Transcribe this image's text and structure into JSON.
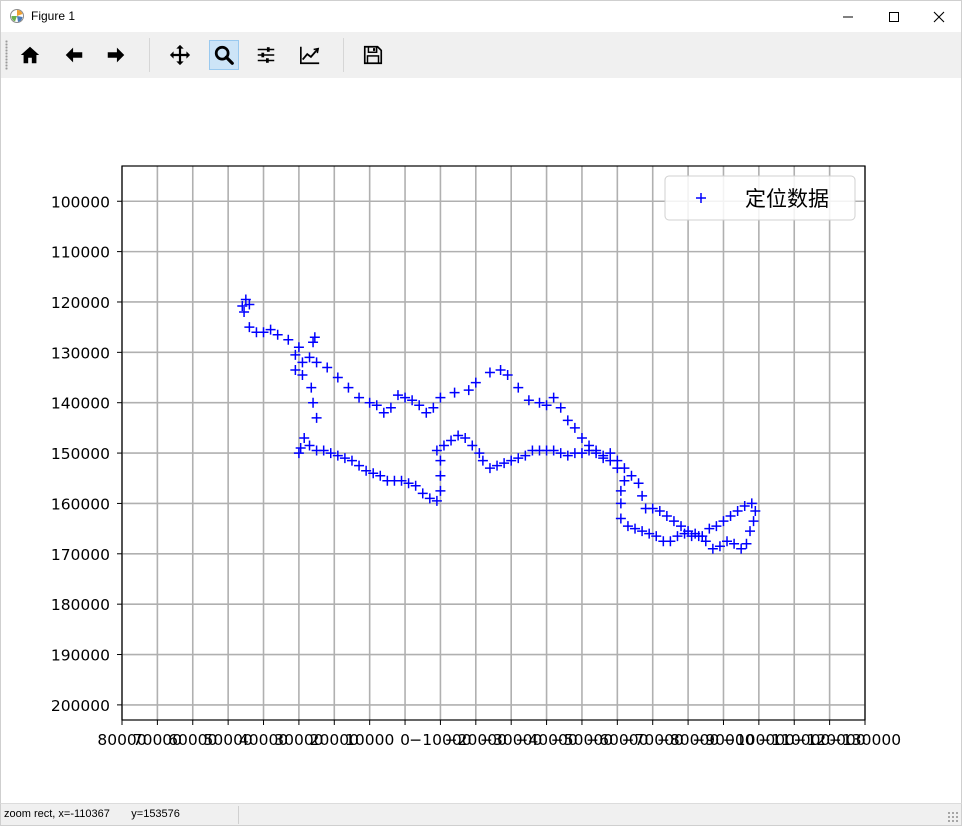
{
  "window": {
    "title": "Figure 1",
    "app_icon": "matplotlib-icon",
    "controls": [
      "minimize-icon",
      "maximize-icon",
      "close-icon"
    ]
  },
  "toolbar": {
    "buttons": [
      {
        "name": "home-button",
        "icon": "home-icon"
      },
      {
        "name": "back-button",
        "icon": "arrow-left-icon"
      },
      {
        "name": "forward-button",
        "icon": "arrow-right-icon"
      },
      {
        "name": "pan-button",
        "icon": "move-icon"
      },
      {
        "name": "zoom-button",
        "icon": "zoom-icon",
        "active": true
      },
      {
        "name": "subplots-button",
        "icon": "sliders-icon"
      },
      {
        "name": "edit-axes-button",
        "icon": "line-chart-icon"
      },
      {
        "name": "save-button",
        "icon": "floppy-disk-icon"
      }
    ]
  },
  "status": {
    "text": "zoom rect, x=-110367       y=153576"
  },
  "chart_data": {
    "type": "scatter",
    "title": "",
    "xlabel": "",
    "ylabel": "",
    "grid": true,
    "legend_position": "top-right",
    "xlim": [
      80000,
      -130000
    ],
    "ylim": [
      203000,
      93000
    ],
    "x_ticks": [
      80000,
      70000,
      60000,
      50000,
      40000,
      30000,
      20000,
      10000,
      0,
      -10000,
      -20000,
      -30000,
      -40000,
      -50000,
      -60000,
      -70000,
      -80000,
      -90000,
      -100000,
      -110000,
      -120000,
      -130000
    ],
    "x_tick_labels": [
      "80000",
      "70000",
      "60000",
      "50000",
      "40000",
      "30000",
      "20000",
      "10000",
      "0",
      "−10000",
      "−20000",
      "−30000",
      "−40000",
      "−50000",
      "−60000",
      "−70000",
      "−80000",
      "−90000",
      "−100000",
      "−110000",
      "−120000",
      "−130000"
    ],
    "y_ticks": [
      100000,
      110000,
      120000,
      130000,
      140000,
      150000,
      160000,
      170000,
      180000,
      190000,
      200000
    ],
    "y_tick_labels": [
      "100000",
      "110000",
      "120000",
      "130000",
      "140000",
      "150000",
      "160000",
      "170000",
      "180000",
      "190000",
      "200000"
    ],
    "series": [
      {
        "name": "定位数据",
        "marker": "+",
        "color": "#0000ff",
        "points": [
          [
            45000,
            119500
          ],
          [
            44000,
            120500
          ],
          [
            46000,
            120800
          ],
          [
            45500,
            122000
          ],
          [
            44000,
            125000
          ],
          [
            42000,
            126000
          ],
          [
            40000,
            126000
          ],
          [
            38000,
            125500
          ],
          [
            36000,
            126500
          ],
          [
            33000,
            127500
          ],
          [
            30000,
            129000
          ],
          [
            31000,
            130500
          ],
          [
            29000,
            132000
          ],
          [
            31000,
            133500
          ],
          [
            29000,
            134500
          ],
          [
            27000,
            131000
          ],
          [
            26000,
            128000
          ],
          [
            25500,
            127000
          ],
          [
            25000,
            132000
          ],
          [
            22000,
            133000
          ],
          [
            19000,
            135000
          ],
          [
            16000,
            137000
          ],
          [
            13000,
            139000
          ],
          [
            10000,
            140000
          ],
          [
            8000,
            140500
          ],
          [
            6000,
            142000
          ],
          [
            4000,
            141000
          ],
          [
            2000,
            138500
          ],
          [
            0,
            139000
          ],
          [
            -2000,
            139500
          ],
          [
            -4000,
            140500
          ],
          [
            -6000,
            142000
          ],
          [
            -8000,
            141000
          ],
          [
            -10000,
            139000
          ],
          [
            -14000,
            138000
          ],
          [
            -18000,
            137500
          ],
          [
            -20000,
            136000
          ],
          [
            -24000,
            134000
          ],
          [
            -27000,
            133500
          ],
          [
            -29000,
            134500
          ],
          [
            -32000,
            137000
          ],
          [
            -35000,
            139500
          ],
          [
            -38000,
            140000
          ],
          [
            -40000,
            140500
          ],
          [
            -42000,
            139000
          ],
          [
            -44000,
            141000
          ],
          [
            -46000,
            143500
          ],
          [
            -48000,
            145000
          ],
          [
            -50000,
            147000
          ],
          [
            -52000,
            148500
          ],
          [
            -54000,
            149500
          ],
          [
            -56000,
            151000
          ],
          [
            -58000,
            150000
          ],
          [
            -60000,
            151500
          ],
          [
            -62000,
            153000
          ],
          [
            -64000,
            154500
          ],
          [
            -66000,
            156000
          ],
          [
            -67000,
            158500
          ],
          [
            -68000,
            161000
          ],
          [
            -70000,
            161000
          ],
          [
            -72000,
            161500
          ],
          [
            -74000,
            162500
          ],
          [
            -76000,
            163500
          ],
          [
            -78000,
            164500
          ],
          [
            -80000,
            165500
          ],
          [
            -82000,
            166000
          ],
          [
            -84000,
            166500
          ],
          [
            -86000,
            165000
          ],
          [
            -88000,
            164500
          ],
          [
            -90000,
            163500
          ],
          [
            -92000,
            162500
          ],
          [
            -94000,
            161500
          ],
          [
            -96000,
            160500
          ],
          [
            -98000,
            160000
          ],
          [
            -99000,
            161500
          ],
          [
            -98500,
            163500
          ],
          [
            -97500,
            165500
          ],
          [
            -96500,
            168000
          ],
          [
            -95000,
            169000
          ],
          [
            -93000,
            168000
          ],
          [
            -91000,
            167500
          ],
          [
            -89000,
            168500
          ],
          [
            -87000,
            169000
          ],
          [
            -85000,
            167500
          ],
          [
            -83000,
            166500
          ],
          [
            -81000,
            166500
          ],
          [
            -79000,
            166000
          ],
          [
            -77000,
            166500
          ],
          [
            -75000,
            167500
          ],
          [
            -73000,
            167500
          ],
          [
            -71000,
            166500
          ],
          [
            -69000,
            166000
          ],
          [
            -67000,
            165500
          ],
          [
            -65000,
            165000
          ],
          [
            -63000,
            164500
          ],
          [
            -61000,
            163000
          ],
          [
            -61000,
            160000
          ],
          [
            -61000,
            157500
          ],
          [
            -62000,
            155500
          ],
          [
            -60000,
            153000
          ],
          [
            -58000,
            151500
          ],
          [
            -56000,
            150500
          ],
          [
            -54000,
            150000
          ],
          [
            -52000,
            149500
          ],
          [
            -50000,
            150000
          ],
          [
            -48000,
            150000
          ],
          [
            -46000,
            150500
          ],
          [
            -44000,
            150000
          ],
          [
            -42000,
            149500
          ],
          [
            -40000,
            149500
          ],
          [
            -38000,
            149500
          ],
          [
            -36000,
            149500
          ],
          [
            -34000,
            150500
          ],
          [
            -32000,
            151000
          ],
          [
            -30000,
            151500
          ],
          [
            -28000,
            152000
          ],
          [
            -26000,
            152500
          ],
          [
            -24000,
            153000
          ],
          [
            -22000,
            151500
          ],
          [
            -21000,
            150000
          ],
          [
            -19000,
            148500
          ],
          [
            -17000,
            147000
          ],
          [
            -15000,
            146500
          ],
          [
            -13000,
            147500
          ],
          [
            -11000,
            148500
          ],
          [
            -9000,
            149500
          ],
          [
            -10000,
            151500
          ],
          [
            -10000,
            154500
          ],
          [
            -10000,
            157500
          ],
          [
            -9000,
            159500
          ],
          [
            -7000,
            159000
          ],
          [
            -5000,
            158000
          ],
          [
            -3000,
            156500
          ],
          [
            -1000,
            156000
          ],
          [
            1000,
            155500
          ],
          [
            3000,
            155500
          ],
          [
            5000,
            155500
          ],
          [
            7000,
            154500
          ],
          [
            9000,
            154000
          ],
          [
            11000,
            153500
          ],
          [
            13000,
            152500
          ],
          [
            15000,
            151500
          ],
          [
            17000,
            151000
          ],
          [
            19000,
            150500
          ],
          [
            21000,
            150000
          ],
          [
            23000,
            149500
          ],
          [
            25000,
            149500
          ],
          [
            27000,
            148500
          ],
          [
            28500,
            147000
          ],
          [
            29500,
            149000
          ],
          [
            30000,
            150000
          ],
          [
            26500,
            137000
          ],
          [
            26000,
            140000
          ],
          [
            25000,
            143000
          ]
        ]
      }
    ]
  }
}
